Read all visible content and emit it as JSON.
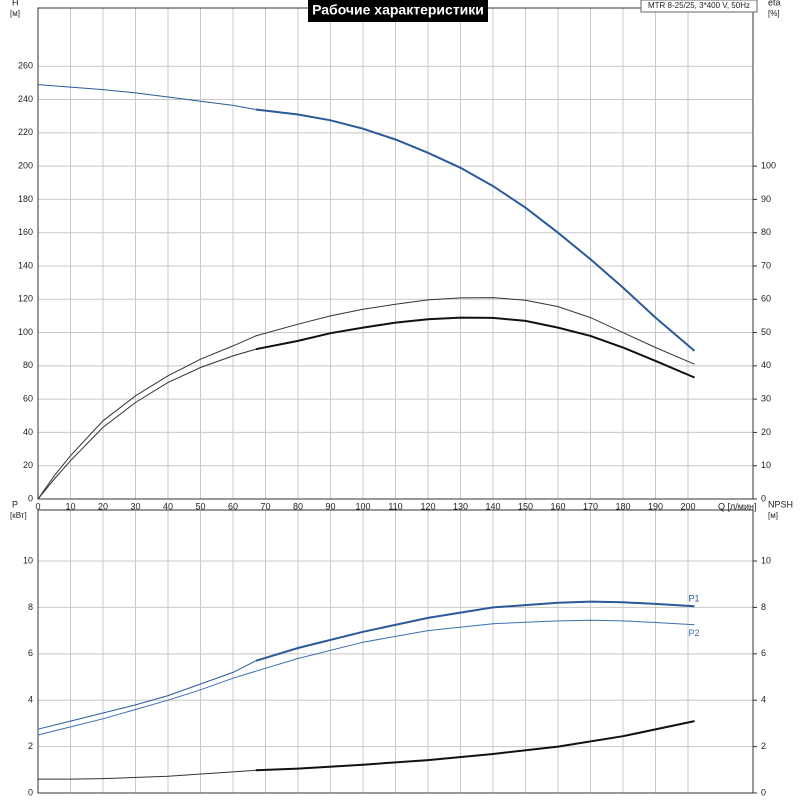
{
  "title": "Рабочие характеристики",
  "model": "MTR 8-25/25, 3*400 V, 50Hz",
  "chart_data": [
    {
      "type": "line",
      "ylabel": "H",
      "yunit": "[м]",
      "y2label": "eta",
      "y2unit": "[%]",
      "xlabel": "Q [л/мин]",
      "xtick_labels": true,
      "xlim": [
        0,
        220
      ],
      "xticks": [
        0,
        10,
        20,
        30,
        40,
        50,
        60,
        70,
        80,
        90,
        100,
        110,
        120,
        130,
        140,
        150,
        160,
        170,
        180,
        190,
        200
      ],
      "ylim": [
        0,
        295
      ],
      "yticks": [
        0,
        20,
        40,
        60,
        80,
        100,
        120,
        140,
        160,
        180,
        200,
        220,
        240,
        260
      ],
      "y2lim": [
        0,
        147.5
      ],
      "y2ticks": [
        0,
        10,
        20,
        30,
        40,
        50,
        60,
        70,
        80,
        90,
        100
      ],
      "grid": true,
      "series": [
        {
          "color": "#2a5a9a",
          "width": 1,
          "x": [
            0,
            10,
            20,
            30,
            40,
            50,
            60,
            67
          ],
          "values": [
            249,
            247.5,
            246,
            244,
            241.5,
            239,
            236.5,
            234
          ]
        },
        {
          "color": "#2a5a9a",
          "width": 2,
          "x": [
            67,
            80,
            90,
            100,
            110,
            120,
            130,
            140,
            150,
            160,
            170,
            180,
            190,
            202
          ],
          "values": [
            234,
            231,
            227.5,
            222.5,
            216,
            208,
            199,
            188,
            175,
            160,
            144,
            127,
            109,
            89
          ]
        },
        {
          "color": "#333333",
          "width": 1,
          "axis": "y2",
          "x": [
            0,
            5,
            10,
            20,
            30,
            40,
            50,
            60,
            67,
            80,
            90,
            100,
            110,
            120,
            130,
            140,
            150,
            160,
            170,
            180,
            190,
            202
          ],
          "values": [
            0,
            7,
            13,
            23.5,
            31,
            37,
            42,
            46,
            49,
            52.5,
            55,
            57,
            58.5,
            59.8,
            60.4,
            60.5,
            59.7,
            57.8,
            54.5,
            50,
            45.5,
            40.5
          ]
        },
        {
          "color": "#333333",
          "width": 1,
          "axis": "y2",
          "x": [
            0,
            5,
            10,
            20,
            30,
            40,
            50,
            60,
            67
          ],
          "values": [
            0,
            6,
            11.5,
            21.5,
            29,
            35,
            39.5,
            43,
            45
          ]
        },
        {
          "color": "#111111",
          "width": 2,
          "axis": "y2",
          "x": [
            67,
            80,
            90,
            100,
            110,
            120,
            130,
            140,
            150,
            160,
            170,
            180,
            190,
            202
          ],
          "values": [
            45,
            47.5,
            49.8,
            51.5,
            53,
            54,
            54.5,
            54.4,
            53.5,
            51.5,
            49,
            45.5,
            41.5,
            36.5
          ]
        }
      ]
    },
    {
      "type": "line",
      "ylabel": "P",
      "yunit": "[кВт]",
      "y2label": "NPSH",
      "y2unit": "[м]",
      "xtick_labels": false,
      "xlim": [
        0,
        220
      ],
      "xticks": [
        0,
        10,
        20,
        30,
        40,
        50,
        60,
        70,
        80,
        90,
        100,
        110,
        120,
        130,
        140,
        150,
        160,
        170,
        180,
        190,
        200
      ],
      "ylim": [
        0,
        12.2
      ],
      "yticks": [
        0,
        2,
        4,
        6,
        8,
        10
      ],
      "y2lim": [
        0,
        12.2
      ],
      "y2ticks": [
        0,
        2,
        4,
        6,
        8,
        10
      ],
      "grid": true,
      "series": [
        {
          "color": "#2a5a9a",
          "width": 1,
          "x": [
            0,
            10,
            20,
            30,
            40,
            50,
            60,
            67
          ],
          "values": [
            2.75,
            3.1,
            3.45,
            3.8,
            4.2,
            4.7,
            5.2,
            5.7
          ]
        },
        {
          "name": "P1",
          "color": "#2a5a9a",
          "width": 2,
          "x": [
            67,
            80,
            100,
            120,
            140,
            160,
            170,
            180,
            190,
            202
          ],
          "values": [
            5.7,
            6.25,
            6.95,
            7.55,
            8.0,
            8.2,
            8.25,
            8.22,
            8.15,
            8.05
          ]
        },
        {
          "name": "P2",
          "color": "#3a6fb0",
          "width": 1,
          "x": [
            0,
            10,
            20,
            30,
            40,
            50,
            60,
            67,
            80,
            100,
            120,
            140,
            160,
            170,
            180,
            190,
            202
          ],
          "values": [
            2.5,
            2.85,
            3.2,
            3.6,
            4.0,
            4.45,
            4.95,
            5.25,
            5.8,
            6.5,
            7.0,
            7.3,
            7.42,
            7.45,
            7.42,
            7.35,
            7.25
          ]
        },
        {
          "color": "#333333",
          "width": 1,
          "axis": "y2",
          "x": [
            0,
            10,
            20,
            40,
            67
          ],
          "values": [
            0.6,
            0.6,
            0.62,
            0.72,
            0.98
          ]
        },
        {
          "color": "#111111",
          "width": 2,
          "axis": "y2",
          "x": [
            67,
            80,
            100,
            120,
            140,
            160,
            180,
            202
          ],
          "values": [
            0.98,
            1.05,
            1.22,
            1.42,
            1.68,
            2.0,
            2.45,
            3.1
          ]
        }
      ]
    }
  ]
}
